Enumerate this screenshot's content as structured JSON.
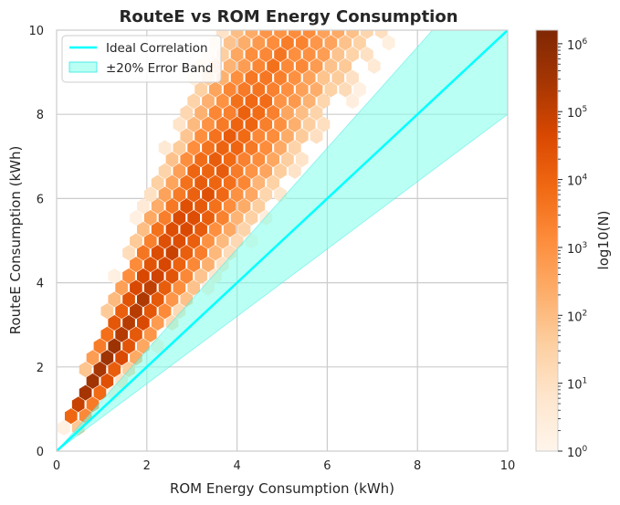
{
  "chart_data": {
    "type": "hexbin",
    "title": "RouteE vs ROM Energy Consumption",
    "xlabel": "ROM Energy Consumption (kWh)",
    "ylabel": "RouteE Consumption (kWh)",
    "xlim": [
      0,
      10
    ],
    "ylim": [
      0,
      10
    ],
    "xticks": [
      "0",
      "2",
      "4",
      "6",
      "8",
      "10"
    ],
    "yticks": [
      "0",
      "2",
      "4",
      "6",
      "8",
      "10"
    ],
    "xtick_values": [
      0,
      2,
      4,
      6,
      8,
      10
    ],
    "ytick_values": [
      0,
      2,
      4,
      6,
      8,
      10
    ],
    "grid": true,
    "density": {
      "description": "hexbin counts, log color scale, Oranges colormap",
      "ridge_slope": 1.9,
      "ridge_slope_min": 1.05,
      "ridge_slope_max": 3.6,
      "peak_log10_count": 6.2
    },
    "reference_line": {
      "name": "Ideal Correlation",
      "x": [
        0,
        10
      ],
      "y": [
        0,
        10
      ],
      "color": "#00FFFF"
    },
    "error_band": {
      "name": "±20% Error Band",
      "lower_factor": 0.8,
      "upper_factor": 1.2,
      "color": "#7FFFEA"
    },
    "legend": {
      "location": "upper-left",
      "entries": [
        "Ideal Correlation",
        "±20% Error Band"
      ]
    },
    "colorbar": {
      "label": "log10(N)",
      "scale": "log",
      "range_exponent": [
        0,
        6.2
      ],
      "tick_bases": [
        "10",
        "10",
        "10",
        "10",
        "10",
        "10",
        "10"
      ],
      "tick_exponents": [
        "0",
        "1",
        "2",
        "3",
        "4",
        "5",
        "6"
      ],
      "tick_exponent_values": [
        0,
        1,
        2,
        3,
        4,
        5,
        6
      ]
    }
  }
}
